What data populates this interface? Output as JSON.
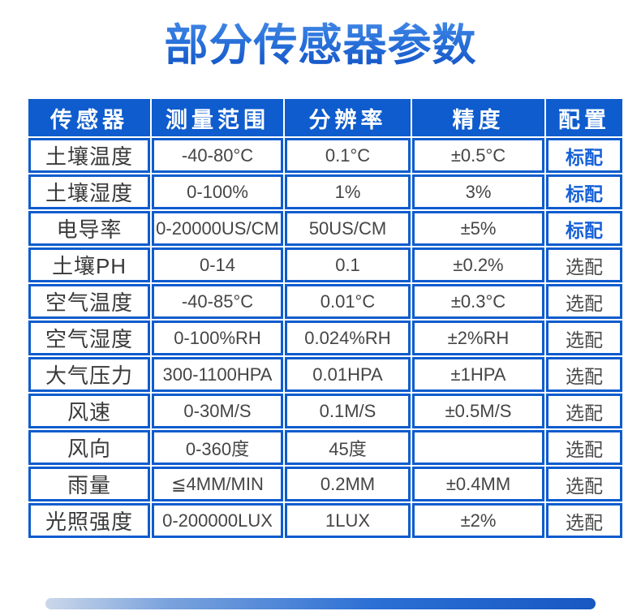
{
  "page": {
    "title": "部分传感器参数"
  },
  "colors": {
    "accent_blue": "#0e5ccd",
    "title_gradient_top": "#4a8de8",
    "title_gradient_bottom": "#1353c5",
    "standard_config_text": "#1560d8",
    "body_text": "#454545"
  },
  "table": {
    "headers": [
      "传感器",
      "测量范围",
      "分辨率",
      "精度",
      "配置"
    ],
    "rows": [
      {
        "sensor": "土壤温度",
        "range": "-40-80°C",
        "resolution": "0.1°C",
        "accuracy": "±0.5°C",
        "config": "标配",
        "standard": true
      },
      {
        "sensor": "土壤湿度",
        "range": "0-100%",
        "resolution": "1%",
        "accuracy": "3%",
        "config": "标配",
        "standard": true
      },
      {
        "sensor": "电导率",
        "range": "0-20000US/CM",
        "resolution": "50US/CM",
        "accuracy": "±5%",
        "config": "标配",
        "standard": true
      },
      {
        "sensor": "土壤PH",
        "range": "0-14",
        "resolution": "0.1",
        "accuracy": "±0.2%",
        "config": "选配",
        "standard": false
      },
      {
        "sensor": "空气温度",
        "range": "-40-85°C",
        "resolution": "0.01°C",
        "accuracy": "±0.3°C",
        "config": "选配",
        "standard": false
      },
      {
        "sensor": "空气湿度",
        "range": "0-100%RH",
        "resolution": "0.024%RH",
        "accuracy": "±2%RH",
        "config": "选配",
        "standard": false
      },
      {
        "sensor": "大气压力",
        "range": "300-1100HPA",
        "resolution": "0.01HPA",
        "accuracy": "±1HPA",
        "config": "选配",
        "standard": false
      },
      {
        "sensor": "风速",
        "range": "0-30M/S",
        "resolution": "0.1M/S",
        "accuracy": "±0.5M/S",
        "config": "选配",
        "standard": false
      },
      {
        "sensor": "风向",
        "range": "0-360度",
        "resolution": "45度",
        "accuracy": "",
        "config": "选配",
        "standard": false
      },
      {
        "sensor": "雨量",
        "range": "≦4MM/MIN",
        "resolution": "0.2MM",
        "accuracy": "±0.4MM",
        "config": "选配",
        "standard": false
      },
      {
        "sensor": "光照强度",
        "range": "0-200000LUX",
        "resolution": "1LUX",
        "accuracy": "±2%",
        "config": "选配",
        "standard": false
      }
    ]
  }
}
